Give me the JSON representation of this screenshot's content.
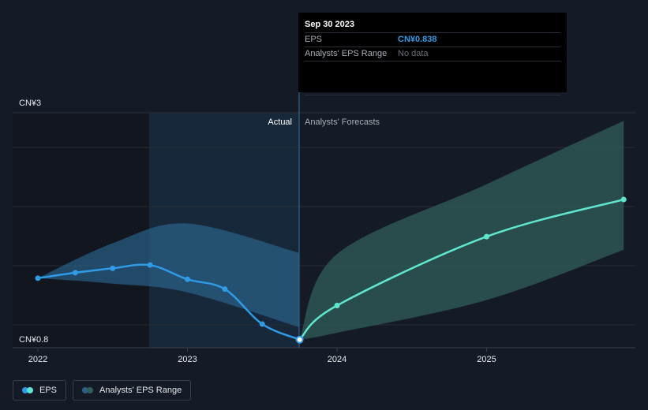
{
  "chart_data": {
    "type": "line",
    "yaxis": {
      "top_label": "CN¥3",
      "bottom_label": "CN¥0.8",
      "ylim": [
        0.8,
        3
      ]
    },
    "x_ticks": [
      "2022",
      "2023",
      "2024",
      "2025"
    ],
    "divider_date": "Sep 30 2023",
    "region_labels": {
      "actual": "Actual",
      "forecast": "Analysts' Forecasts"
    },
    "series": [
      {
        "name": "EPS",
        "color": "#2f9be6",
        "points": [
          [
            "2022-01",
            1.4
          ],
          [
            "2022-04",
            1.45
          ],
          [
            "2022-07",
            1.49
          ],
          [
            "2022-10",
            1.52
          ],
          [
            "2023-01",
            1.39
          ],
          [
            "2023-04",
            1.3
          ],
          [
            "2023-07",
            0.98
          ],
          [
            "2023-10",
            0.838
          ]
        ]
      },
      {
        "name": "EPS Forecast",
        "color": "#5ee6cf",
        "points": [
          [
            "2023-10",
            0.838
          ],
          [
            "2024-01",
            1.15
          ],
          [
            "2025-01",
            1.78
          ],
          [
            "2025-12",
            2.12
          ]
        ]
      }
    ],
    "past_range": {
      "upper": [
        [
          "2022-01",
          1.4
        ],
        [
          "2022-07",
          1.72
        ],
        [
          "2023-01",
          1.9
        ],
        [
          "2023-10",
          1.63
        ]
      ],
      "lower": [
        [
          "2022-01",
          1.4
        ],
        [
          "2022-07",
          1.35
        ],
        [
          "2023-01",
          1.27
        ],
        [
          "2023-10",
          0.95
        ]
      ]
    },
    "forecast_range": {
      "upper": [
        [
          "2023-10",
          0.838
        ],
        [
          "2024-01",
          1.62
        ],
        [
          "2025-01",
          2.26
        ],
        [
          "2025-12",
          2.84
        ]
      ],
      "lower": [
        [
          "2023-10",
          0.838
        ],
        [
          "2024-01",
          0.9
        ],
        [
          "2025-01",
          1.2
        ],
        [
          "2025-12",
          1.66
        ]
      ]
    }
  },
  "tooltip": {
    "date": "Sep 30 2023",
    "eps_label": "EPS",
    "eps_value": "CN¥0.838",
    "range_label": "Analysts' EPS Range",
    "range_value": "No data"
  },
  "legend": {
    "eps": {
      "label": "EPS",
      "colors": [
        "#2f9be6",
        "#5ee6cf"
      ]
    },
    "range": {
      "label": "Analysts' EPS Range",
      "colors": [
        "#2b5f85",
        "#2f5f5a"
      ]
    }
  }
}
